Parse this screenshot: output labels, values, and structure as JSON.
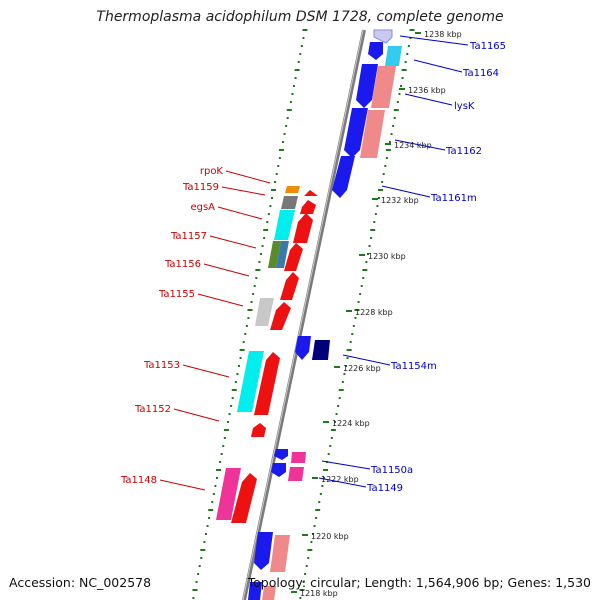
{
  "title": "Thermoplasma acidophilum DSM 1728, complete genome",
  "footer": {
    "accession": "Accession: NC_002578",
    "summary": "Topology: circular; Length: 1,564,906 bp; Genes: 1,530"
  },
  "colors": {
    "backbone": "#7f7f7f",
    "ticks": "#1f7a1f",
    "plus_label": "#0000cc",
    "minus_label": "#cc0000"
  },
  "scale_ticks": [
    "1238 kbp",
    "1236 kbp",
    "1234 kbp",
    "1232 kbp",
    "1230 kbp",
    "1228 kbp",
    "1226 kbp",
    "1224 kbp",
    "1222 kbp",
    "1220 kbp",
    "1218 kbp"
  ],
  "right_labels": [
    "Ta1165",
    "Ta1164",
    "lysK",
    "Ta1162",
    "Ta1161m",
    "Ta1154m",
    "Ta1150a",
    "Ta1149"
  ],
  "left_labels": [
    "rpoK",
    "Ta1159",
    "egsA",
    "Ta1157",
    "Ta1156",
    "Ta1155",
    "Ta1153",
    "Ta1152",
    "Ta1148"
  ]
}
